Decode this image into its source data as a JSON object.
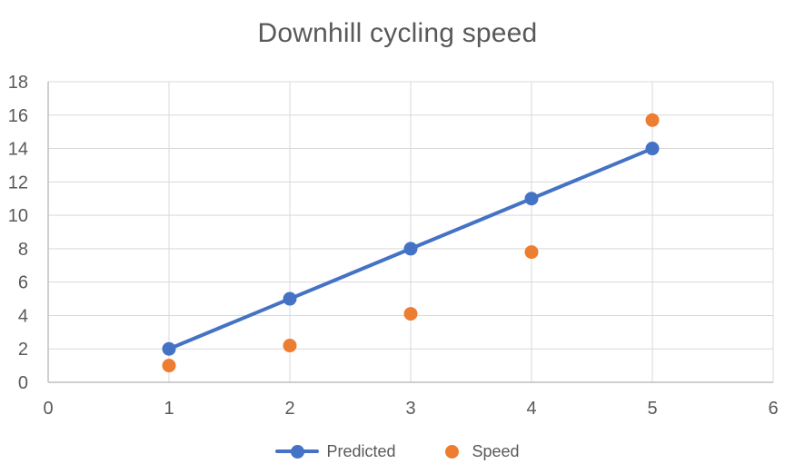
{
  "chart_data": {
    "type": "line",
    "title": "Downhill cycling speed",
    "x": [
      1,
      2,
      3,
      4,
      5
    ],
    "series": [
      {
        "name": "Predicted",
        "render": "line-with-markers",
        "color": "#4472C4",
        "values": [
          2,
          5,
          8,
          11,
          14
        ]
      },
      {
        "name": "Speed",
        "render": "scatter",
        "color": "#ED7D31",
        "values": [
          1,
          2.2,
          4.1,
          7.8,
          15.7
        ]
      }
    ],
    "xlim": [
      0,
      6
    ],
    "ylim": [
      0,
      18
    ],
    "x_ticks": [
      0,
      1,
      2,
      3,
      4,
      5,
      6
    ],
    "y_ticks": [
      0,
      2,
      4,
      6,
      8,
      10,
      12,
      14,
      16,
      18
    ],
    "grid": true,
    "legend_position": "bottom",
    "xlabel": "",
    "ylabel": "",
    "colors": {
      "background": "#ffffff",
      "gridline": "#d9d9d9",
      "axis_line": "#bfbfbf",
      "text": "#595959",
      "title_text": "#595959"
    }
  }
}
